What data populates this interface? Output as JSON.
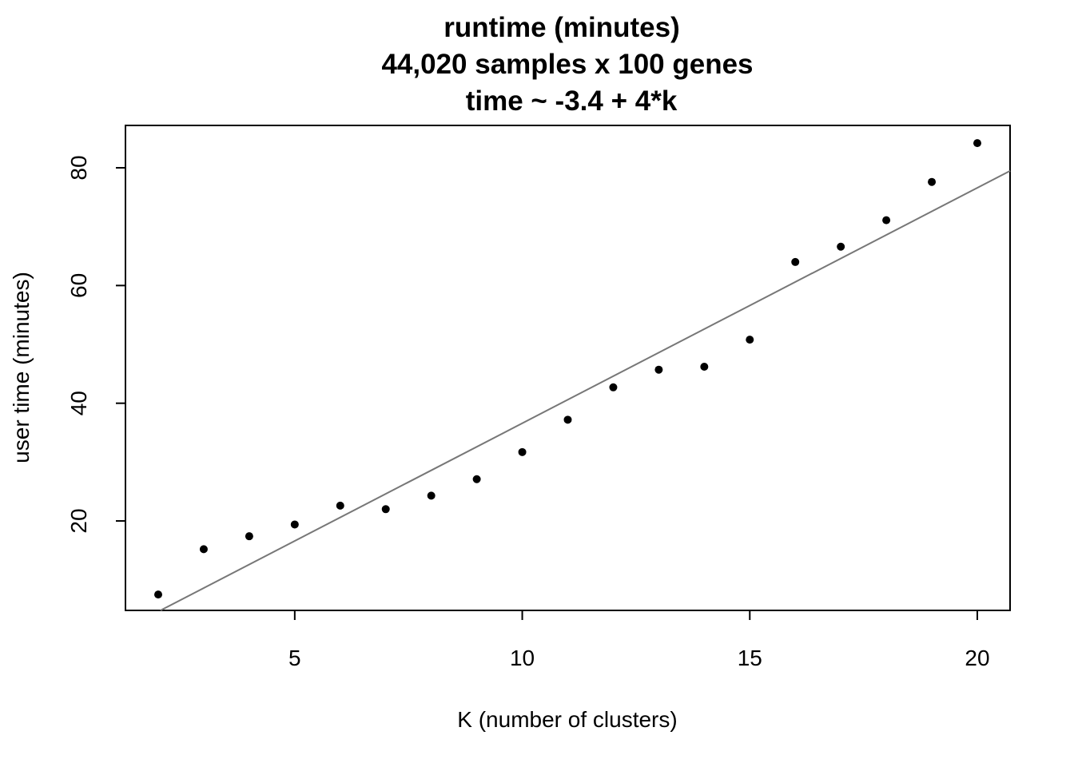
{
  "chart_data": {
    "type": "scatter",
    "title": "runtime (minutes)",
    "subtitle": "44,020 samples x 100 genes",
    "subtitle2": "time ~ -3.4 + 4*k",
    "xlabel": "K (number of clusters)",
    "ylabel": "user time (minutes)",
    "xlim": [
      1.28,
      20.72
    ],
    "ylim": [
      4.8,
      87.2
    ],
    "xticks": [
      "5",
      "10",
      "15",
      "20"
    ],
    "yticks": [
      "20",
      "40",
      "60",
      "80"
    ],
    "grid": false,
    "x": [
      2,
      3,
      4,
      5,
      6,
      7,
      8,
      9,
      10,
      11,
      12,
      13,
      14,
      15,
      16,
      17,
      18,
      19,
      20
    ],
    "y": [
      7.5,
      15.2,
      17.4,
      19.4,
      22.6,
      22.0,
      24.3,
      27.1,
      31.7,
      37.2,
      42.7,
      45.7,
      46.2,
      50.8,
      64.0,
      66.6,
      71.1,
      77.6,
      84.2
    ],
    "fit_line": {
      "intercept": -3.4,
      "slope": 4,
      "color": "#777777"
    },
    "point_color": "#000000"
  }
}
